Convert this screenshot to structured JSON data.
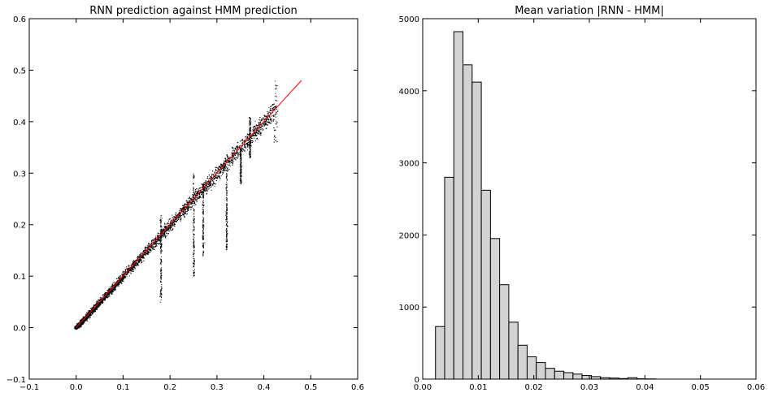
{
  "chart_data": [
    {
      "type": "scatter",
      "title": "RNN prediction against HMM prediction",
      "xlabel": "",
      "ylabel": "",
      "xlim": [
        -0.1,
        0.6
      ],
      "ylim": [
        -0.1,
        0.6
      ],
      "xticks": [
        "−0.1",
        "0.0",
        "0.1",
        "0.2",
        "0.3",
        "0.4",
        "0.5",
        "0.6"
      ],
      "yticks": [
        "−0.1",
        "0.0",
        "0.1",
        "0.2",
        "0.3",
        "0.4",
        "0.5",
        "0.6"
      ],
      "marker_color": "#000000",
      "reference_line": {
        "x": [
          0.0,
          0.48
        ],
        "y": [
          0.0,
          0.48
        ],
        "color": "#ff0000"
      },
      "point_density_bands": [
        {
          "x_range": [
            0.0,
            0.05
          ],
          "y_range": [
            0.0,
            0.07
          ]
        },
        {
          "x_range": [
            0.05,
            0.1
          ],
          "y_range": [
            0.03,
            0.16
          ]
        },
        {
          "x_range": [
            0.1,
            0.15
          ],
          "y_range": [
            0.06,
            0.2
          ]
        },
        {
          "x_range": [
            0.15,
            0.2
          ],
          "y_range": [
            0.1,
            0.25
          ]
        },
        {
          "x_range": [
            0.2,
            0.25
          ],
          "y_range": [
            0.13,
            0.3
          ]
        },
        {
          "x_range": [
            0.25,
            0.3
          ],
          "y_range": [
            0.2,
            0.32
          ]
        },
        {
          "x_range": [
            0.3,
            0.35
          ],
          "y_range": [
            0.26,
            0.4
          ]
        },
        {
          "x_range": [
            0.35,
            0.4
          ],
          "y_range": [
            0.33,
            0.41
          ]
        },
        {
          "x_range": [
            0.4,
            0.43
          ],
          "y_range": [
            0.35,
            0.48
          ]
        }
      ],
      "grid": false
    },
    {
      "type": "bar",
      "title": "Mean variation |RNN - HMM|",
      "xlabel": "",
      "ylabel": "",
      "xlim": [
        0.0,
        0.06
      ],
      "ylim": [
        0,
        5000
      ],
      "xticks": [
        "0.00",
        "0.01",
        "0.02",
        "0.03",
        "0.04",
        "0.05",
        "0.06"
      ],
      "yticks": [
        "0",
        "1000",
        "2000",
        "3000",
        "4000",
        "5000"
      ],
      "bar_color": "#d3d3d3",
      "edge_color": "#000000",
      "bin_start": 0.0023,
      "bin_width": 0.00165,
      "values": [
        730,
        2800,
        4820,
        4360,
        4120,
        2620,
        1950,
        1310,
        790,
        470,
        310,
        230,
        150,
        110,
        90,
        70,
        50,
        35,
        20,
        15,
        8,
        20,
        5,
        3
      ],
      "grid": false
    }
  ]
}
